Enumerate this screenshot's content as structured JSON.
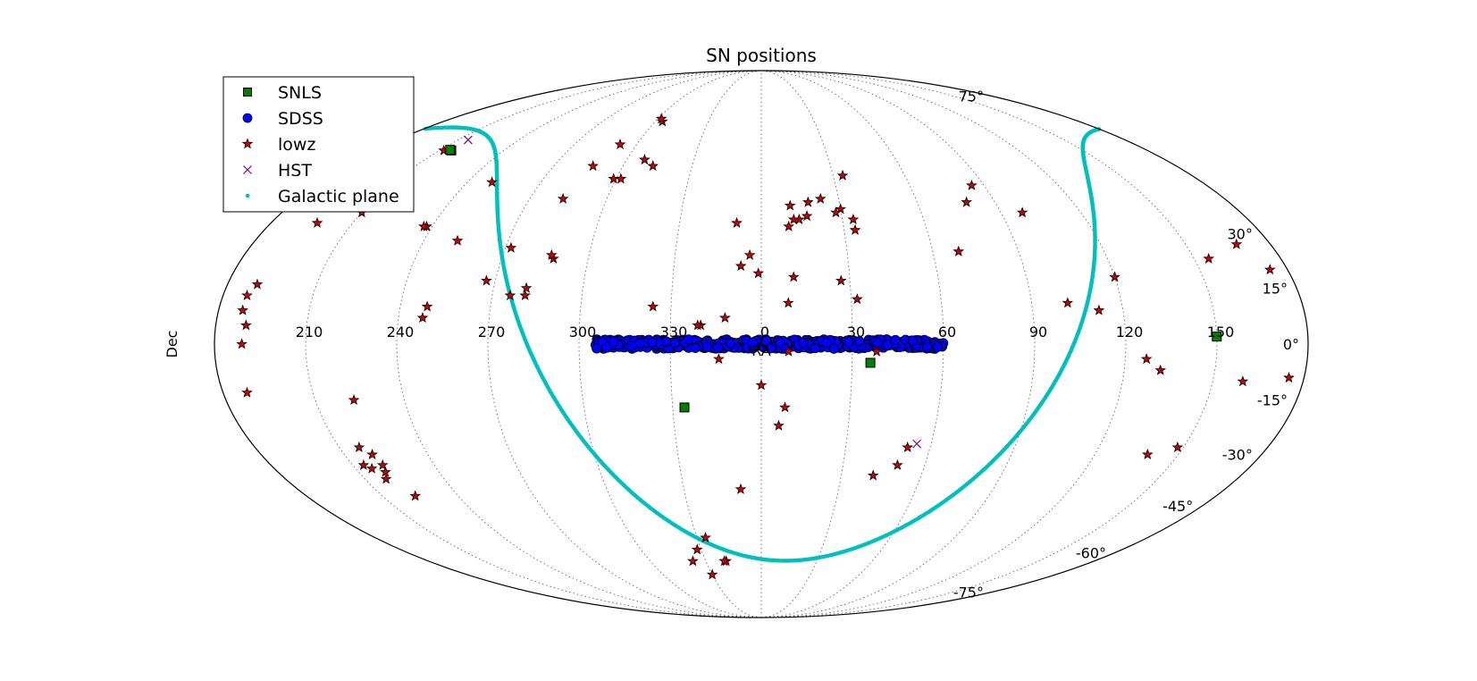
{
  "chart_data": {
    "type": "scatter",
    "projection": "mollweide",
    "title": "SN positions",
    "xlabel": "RA",
    "ylabel": "Dec",
    "grid": true,
    "legend_position": "top-left",
    "ra_tick_labels": [
      {
        "ra": 150,
        "label": "150"
      },
      {
        "ra": 120,
        "label": "120"
      },
      {
        "ra": 90,
        "label": "90"
      },
      {
        "ra": 60,
        "label": "60"
      },
      {
        "ra": 30,
        "label": "30"
      },
      {
        "ra": 0,
        "label": "0"
      },
      {
        "ra": 330,
        "label": "330"
      },
      {
        "ra": 300,
        "label": "300"
      },
      {
        "ra": 270,
        "label": "270"
      },
      {
        "ra": 240,
        "label": "240"
      },
      {
        "ra": 210,
        "label": "210"
      }
    ],
    "dec_tick_labels": [
      {
        "dec": 75,
        "label": "75°"
      },
      {
        "dec": 30,
        "label": "30°"
      },
      {
        "dec": 15,
        "label": "15°"
      },
      {
        "dec": 0,
        "label": "0°"
      },
      {
        "dec": -15,
        "label": "-15°"
      },
      {
        "dec": -30,
        "label": "-30°"
      },
      {
        "dec": -45,
        "label": "-45°"
      },
      {
        "dec": -60,
        "label": "-60°"
      },
      {
        "dec": -75,
        "label": "-75°"
      }
    ],
    "series": [
      {
        "name": "SNLS",
        "marker": "square",
        "color": "#008000",
        "points": [
          [
            150,
            2
          ],
          [
            36,
            -5
          ],
          [
            334,
            -17
          ],
          [
            215.5,
            55
          ],
          [
            214.5,
            55.2
          ]
        ]
      },
      {
        "name": "SDSS",
        "marker": "circle",
        "color": "#0000ff",
        "ra_range": [
          -55,
          60
        ],
        "dec_range": [
          -1.25,
          1.25
        ],
        "count": 420
      },
      {
        "name": "lowz",
        "marker": "star",
        "color": "#cc0000",
        "points": [
          [
            175,
            -9
          ],
          [
            174,
            20
          ],
          [
            168,
            27
          ],
          [
            155,
            23
          ],
          [
            160,
            -10
          ],
          [
            148,
            -28
          ],
          [
            139,
            -30
          ],
          [
            132,
            -7
          ],
          [
            127,
            -4
          ],
          [
            120,
            18
          ],
          [
            112,
            9
          ],
          [
            102,
            11
          ],
          [
            98,
            36
          ],
          [
            85,
            44
          ],
          [
            79,
            39
          ],
          [
            69,
            25
          ],
          [
            50,
            -33
          ],
          [
            52,
            -28
          ],
          [
            42,
            -36
          ],
          [
            38,
            -2
          ],
          [
            32,
            12
          ],
          [
            27,
            17
          ],
          [
            34,
            47
          ],
          [
            34,
            31
          ],
          [
            30,
            37
          ],
          [
            34,
            34
          ],
          [
            28,
            36
          ],
          [
            23,
            40
          ],
          [
            17,
            35
          ],
          [
            18,
            39
          ],
          [
            14,
            34
          ],
          [
            12,
            34
          ],
          [
            11,
            18
          ],
          [
            11,
            38
          ],
          [
            10,
            32
          ],
          [
            9,
            -2
          ],
          [
            8,
            -17
          ],
          [
            6,
            -22
          ],
          [
            9,
            11
          ],
          [
            0,
            -11
          ],
          [
            -1,
            19
          ],
          [
            -4,
            24
          ],
          [
            -7,
            21
          ],
          [
            -8,
            -40
          ],
          [
            -9,
            33
          ],
          [
            -12,
            7
          ],
          [
            -14,
            -4
          ],
          [
            -20,
            5
          ],
          [
            -21,
            5
          ],
          [
            -37,
            -63
          ],
          [
            -30,
            -68
          ],
          [
            -26,
            -55
          ],
          [
            -19,
            -63
          ],
          [
            -20,
            -63
          ],
          [
            -32,
            -59
          ],
          [
            -36,
            10
          ],
          [
            -56,
            65
          ],
          [
            -58,
            66
          ],
          [
            -47,
            50
          ],
          [
            -52,
            52
          ],
          [
            -58,
            46
          ],
          [
            -68,
            57
          ],
          [
            -61,
            46
          ],
          [
            -72,
            23
          ],
          [
            -73,
            24
          ],
          [
            -73,
            50
          ],
          [
            -77,
            40
          ],
          [
            -79,
            13
          ],
          [
            -88,
            26
          ],
          [
            -93,
            17
          ],
          [
            -108,
            28
          ],
          [
            -111,
            10
          ],
          [
            -110,
            45
          ],
          [
            -122,
            32
          ],
          [
            -123,
            32
          ],
          [
            -148,
            55
          ],
          [
            -150,
            48
          ],
          [
            -153,
            50
          ],
          [
            -166,
            52
          ],
          [
            -163,
            33
          ],
          [
            -168,
            39
          ],
          [
            -170,
            16
          ],
          [
            -172,
            13
          ],
          [
            -172,
            9
          ],
          [
            -170,
            5
          ],
          [
            -171,
            0
          ],
          [
            -172,
            -13
          ],
          [
            -146,
            -33
          ],
          [
            -144,
            -34
          ],
          [
            -142,
            -37
          ],
          [
            -140,
            -30
          ],
          [
            -137,
            -42
          ],
          [
            -137,
            -15
          ],
          [
            -139,
            -33
          ],
          [
            -140,
            -35
          ],
          [
            -143,
            -28
          ],
          [
            -112,
            7
          ],
          [
            -79,
            15
          ],
          [
            -150,
            36
          ],
          [
            -84,
            13
          ]
        ]
      },
      {
        "name": "HST",
        "marker": "x",
        "color": "#800080",
        "points": [
          [
            215,
            58.5
          ],
          [
            55,
            -27
          ]
        ]
      },
      {
        "name": "Galactic plane",
        "marker": "dot",
        "color": "#00bfbf",
        "note": "great circle, pole at RA 192.86, Dec 27.13"
      }
    ]
  }
}
